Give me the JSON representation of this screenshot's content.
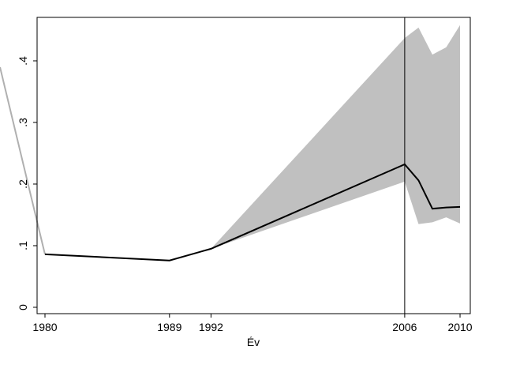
{
  "chart_data": {
    "type": "line",
    "x": [
      1980,
      1989,
      1992,
      2006,
      2007,
      2008,
      2009,
      2010
    ],
    "values": [
      0.086,
      0.076,
      0.095,
      0.232,
      0.206,
      0.16,
      0.162,
      0.163
    ],
    "ci_upper": [
      0.086,
      0.076,
      0.095,
      0.437,
      0.454,
      0.41,
      0.422,
      0.458
    ],
    "ci_lower": [
      0.086,
      0.076,
      0.095,
      0.204,
      0.135,
      0.138,
      0.146,
      0.136
    ],
    "color": "#000000",
    "band_color": "#c0c0c0",
    "xline": 2006,
    "xlabel": "Év",
    "xlim": [
      1979.43,
      2010.74
    ],
    "xticks": [
      1980,
      1989,
      1992,
      2006,
      2010
    ],
    "ylim": [
      -0.0103,
      0.4705
    ],
    "yticks": [
      0,
      {
        "value": 0.1,
        "label": ".1"
      },
      {
        "value": 0.2,
        "label": ".2"
      },
      {
        "value": 0.3,
        "label": ".3"
      },
      {
        "value": 0.4,
        "label": ".4"
      }
    ]
  }
}
